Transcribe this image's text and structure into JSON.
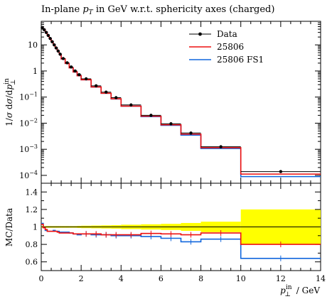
{
  "chart_data": [
    {
      "type": "line",
      "title": "In-plane pT in GeV w.r.t. sphericity axes (charged)",
      "ylabel": "1/σ dσ/d p⊥in",
      "yscale": "log",
      "ylim": [
        5e-05,
        80
      ],
      "xlim": [
        0,
        14
      ],
      "ytick_labels": [
        "10",
        "1",
        "10−1",
        "10−2",
        "10−3",
        "10−4"
      ],
      "legend": {
        "placement": "top-right",
        "entries": [
          "Data",
          "25806",
          "25806 FS1"
        ]
      },
      "bin_edges": [
        0,
        0.1,
        0.2,
        0.3,
        0.4,
        0.5,
        0.6,
        0.7,
        0.8,
        0.9,
        1.0,
        1.2,
        1.4,
        1.6,
        1.8,
        2.0,
        2.5,
        3.0,
        3.5,
        4.0,
        5.0,
        6.0,
        7.0,
        8.0,
        10.0,
        14.0
      ],
      "series": [
        {
          "name": "Data",
          "color": "#000000",
          "style": "points",
          "values": [
            46,
            38,
            30,
            23,
            17.5,
            13.2,
            10.0,
            7.6,
            5.8,
            4.4,
            3.0,
            2.05,
            1.42,
            1.0,
            0.72,
            0.5,
            0.27,
            0.155,
            0.095,
            0.05,
            0.02,
            0.0095,
            0.0042,
            0.00125,
            0.00014
          ]
        },
        {
          "name": "25806",
          "color": "#ee1111",
          "style": "step",
          "values": [
            47,
            39,
            31,
            23.5,
            17.8,
            13.4,
            10.1,
            7.6,
            5.8,
            4.3,
            2.9,
            1.95,
            1.33,
            0.92,
            0.66,
            0.46,
            0.245,
            0.14,
            0.086,
            0.045,
            0.0185,
            0.0087,
            0.0038,
            0.00115,
            0.000112
          ]
        },
        {
          "name": "25806 FS1",
          "color": "#1166dd",
          "style": "step",
          "values": [
            47,
            39,
            31,
            23.5,
            17.8,
            13.4,
            10.1,
            7.6,
            5.8,
            4.3,
            2.9,
            1.95,
            1.33,
            0.92,
            0.66,
            0.46,
            0.245,
            0.14,
            0.085,
            0.045,
            0.0178,
            0.0083,
            0.0035,
            0.00107,
            9e-05
          ]
        }
      ]
    },
    {
      "type": "line",
      "ylabel": "MC/Data",
      "xlabel": "p⊥in / GeV",
      "xlim": [
        0,
        14
      ],
      "ylim": [
        0.5,
        1.5
      ],
      "xticks": [
        0,
        2,
        4,
        6,
        8,
        10,
        12,
        14
      ],
      "yticks": [
        0.6,
        0.8,
        1,
        1.2,
        1.4
      ],
      "bin_edges": [
        0,
        0.1,
        0.2,
        0.3,
        0.4,
        0.5,
        0.6,
        0.7,
        0.8,
        0.9,
        1.0,
        1.2,
        1.4,
        1.6,
        1.8,
        2.0,
        2.5,
        3.0,
        3.5,
        4.0,
        5.0,
        6.0,
        7.0,
        8.0,
        10.0,
        14.0
      ],
      "data_uncertainty_band": [
        0.01,
        0.01,
        0.01,
        0.01,
        0.01,
        0.01,
        0.01,
        0.01,
        0.01,
        0.01,
        0.01,
        0.01,
        0.01,
        0.01,
        0.012,
        0.014,
        0.016,
        0.018,
        0.02,
        0.025,
        0.03,
        0.035,
        0.045,
        0.06,
        0.2
      ],
      "band_color": "#ffff00",
      "series": [
        {
          "name": "25806",
          "color": "#ee1111",
          "values": [
            1.03,
            0.99,
            0.97,
            0.95,
            0.95,
            0.95,
            0.95,
            0.95,
            0.94,
            0.93,
            0.93,
            0.93,
            0.93,
            0.92,
            0.92,
            0.92,
            0.92,
            0.91,
            0.91,
            0.91,
            0.925,
            0.92,
            0.91,
            0.93,
            0.8
          ]
        },
        {
          "name": "25806 FS1",
          "color": "#1166dd",
          "values": [
            1.04,
            0.99,
            0.96,
            0.95,
            0.95,
            0.95,
            0.96,
            0.95,
            0.95,
            0.94,
            0.94,
            0.94,
            0.93,
            0.92,
            0.91,
            0.92,
            0.91,
            0.91,
            0.9,
            0.9,
            0.89,
            0.87,
            0.83,
            0.86,
            0.64
          ]
        }
      ]
    }
  ]
}
